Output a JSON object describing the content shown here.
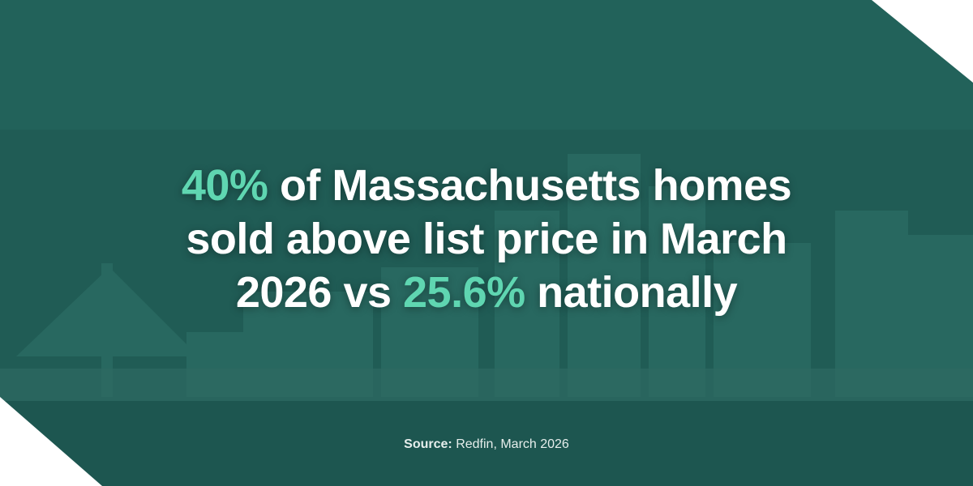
{
  "headline": {
    "line1": [
      "40%",
      " of Massachusetts homes"
    ],
    "line2": [
      "sold above list price in March"
    ],
    "line3": [
      "2026 vs ",
      "25.6%",
      " nationally"
    ]
  },
  "source": {
    "label": "Source:",
    "text": " Redfin, March 2026"
  }
}
